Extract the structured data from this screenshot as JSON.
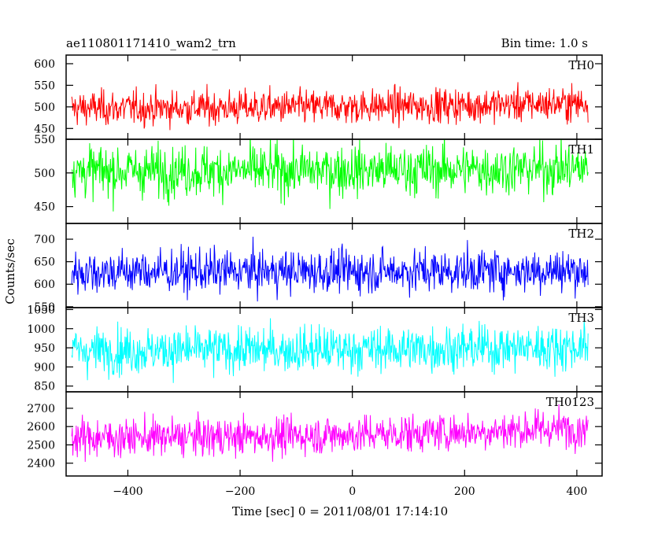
{
  "header": {
    "left_title": "ae110801171410_wam2_trn",
    "right_title": "Bin time: 1.0 s"
  },
  "chart_data": {
    "type": "line",
    "xlabel": "Time [sec] 0 = 2011/08/01 17:14:10",
    "ylabel": "Counts/sec",
    "xlim": [
      -510,
      445
    ],
    "x_start": -500,
    "x_end": 420,
    "x_ticks": [
      -400,
      -200,
      0,
      200,
      400
    ],
    "x_tick_labels": [
      "−400",
      "−200",
      "0",
      "200",
      "400"
    ],
    "panels": [
      {
        "name": "TH0",
        "color": "#ff0000",
        "ylim": [
          425,
          620
        ],
        "yticks": [
          450,
          500,
          550,
          600
        ],
        "mean": 497,
        "noise": 20,
        "trend": 12
      },
      {
        "name": "TH1",
        "color": "#00ff00",
        "ylim": [
          425,
          550
        ],
        "yticks": [
          450,
          500,
          550
        ],
        "mean": 503,
        "noise": 19,
        "trend": 4
      },
      {
        "name": "TH2",
        "color": "#0000ff",
        "ylim": [
          548,
          735
        ],
        "yticks": [
          550,
          600,
          650,
          700
        ],
        "mean": 628,
        "noise": 24,
        "trend": 3
      },
      {
        "name": "TH3",
        "color": "#00ffff",
        "ylim": [
          835,
          1055
        ],
        "yticks": [
          850,
          900,
          950,
          1000,
          1050
        ],
        "mean": 943,
        "noise": 30,
        "trend": 10
      },
      {
        "name": "TH0123",
        "color": "#ff00ff",
        "ylim": [
          2330,
          2790
        ],
        "yticks": [
          2400,
          2500,
          2600,
          2700
        ],
        "mean": 2540,
        "noise": 52,
        "trend": 55
      }
    ]
  }
}
